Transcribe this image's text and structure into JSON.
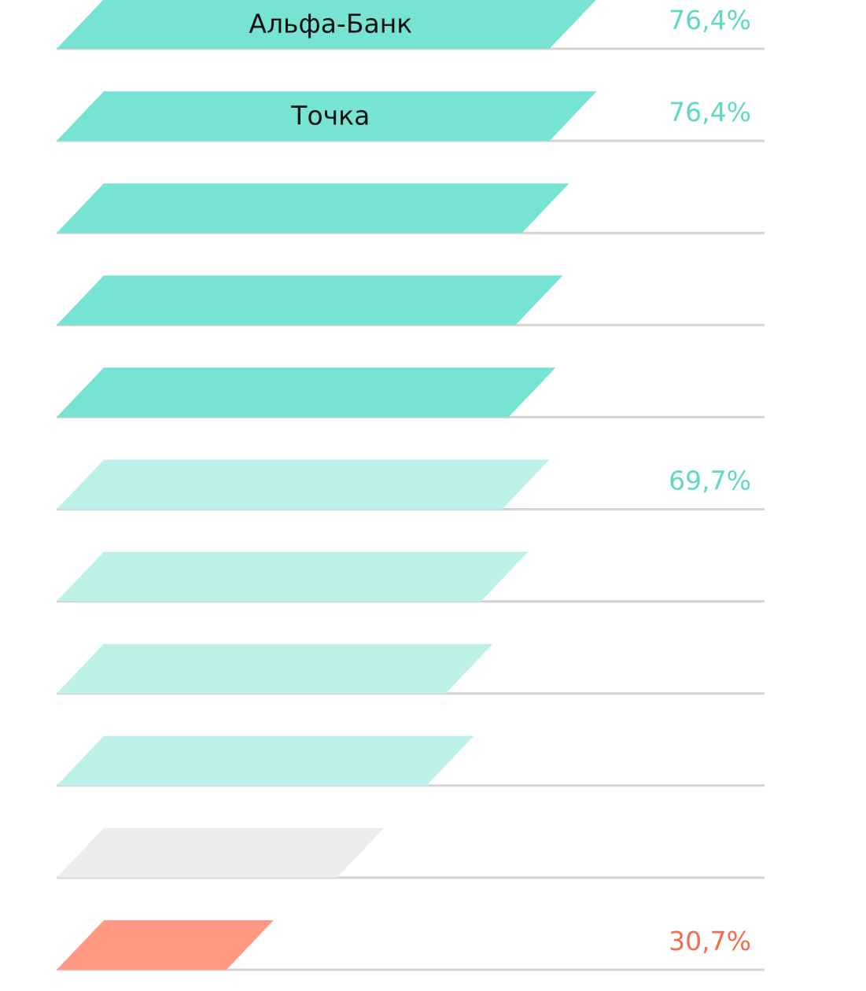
{
  "colors": {
    "leader": "#76e3d3",
    "good": "#bcf1e8",
    "neutral": "#ececec",
    "low": "#ff9984",
    "value_green": "#5fd9c3",
    "value_red": "#f26d4f",
    "baseline": "#d4d4d4"
  },
  "chart_data": {
    "type": "bar",
    "orientation": "horizontal",
    "value_axis_range": [
      0,
      100
    ],
    "grid": false,
    "legend": "none",
    "bars": [
      {
        "label": "Альфа-Банк",
        "value": 76.4,
        "value_label": "76,4%",
        "tier": "leader"
      },
      {
        "label": "Точка",
        "value": 76.4,
        "value_label": "76,4%",
        "tier": "leader"
      },
      {
        "label": "",
        "value": 72.5,
        "value_label": "",
        "tier": "leader"
      },
      {
        "label": "",
        "value": 71.6,
        "value_label": "",
        "tier": "leader"
      },
      {
        "label": "",
        "value": 70.6,
        "value_label": "",
        "tier": "leader"
      },
      {
        "label": "",
        "value": 69.7,
        "value_label": "69,7%",
        "tier": "good"
      },
      {
        "label": "",
        "value": 66.7,
        "value_label": "",
        "tier": "good"
      },
      {
        "label": "",
        "value": 61.7,
        "value_label": "",
        "tier": "good"
      },
      {
        "label": "",
        "value": 59.0,
        "value_label": "",
        "tier": "good"
      },
      {
        "label": "",
        "value": 46.3,
        "value_label": "",
        "tier": "neutral"
      },
      {
        "label": "",
        "value": 30.7,
        "value_label": "30,7%",
        "tier": "low"
      }
    ]
  }
}
